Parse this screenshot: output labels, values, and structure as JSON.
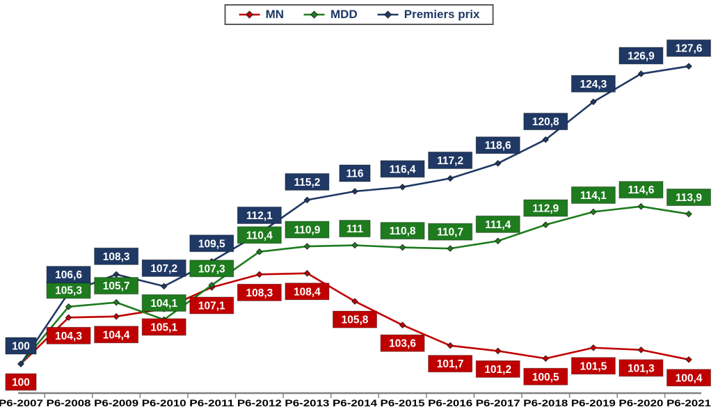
{
  "chart_data": {
    "type": "line",
    "title": "",
    "xlabel": "",
    "ylabel": "",
    "categories": [
      "P6-2007",
      "P6-2008",
      "P6-2009",
      "P6-2010",
      "P6-2011",
      "P6-2012",
      "P6-2013",
      "P6-2014",
      "P6-2015",
      "P6-2016",
      "P6-2017",
      "P6-2018",
      "P6-2019",
      "P6-2020",
      "P6-2021"
    ],
    "series": [
      {
        "name": "MN",
        "color": "#C00000",
        "values": [
          100,
          104.3,
          104.4,
          105.1,
          107.1,
          108.3,
          108.4,
          105.8,
          103.6,
          101.7,
          101.2,
          100.5,
          101.5,
          101.3,
          100.4
        ],
        "labels": [
          "100",
          "104,3",
          "104,4",
          "105,1",
          "107,1",
          "108,3",
          "108,4",
          "105,8",
          "103,6",
          "101,7",
          "101,2",
          "100,5",
          "101,5",
          "101,3",
          "100,4"
        ],
        "label_offset": 26
      },
      {
        "name": "MDD",
        "color": "#1E7B1E",
        "values": [
          100,
          105.3,
          105.7,
          104.1,
          107.3,
          110.4,
          110.9,
          111,
          110.8,
          110.7,
          111.4,
          112.9,
          114.1,
          114.6,
          113.9
        ],
        "labels": [
          "",
          "105,3",
          "105,7",
          "104,1",
          "107,3",
          "110,4",
          "110,9",
          "111",
          "110,8",
          "110,7",
          "111,4",
          "112,9",
          "114,1",
          "114,6",
          "113,9"
        ],
        "label_offset": -24
      },
      {
        "name": "Premiers prix",
        "color": "#1F3864",
        "values": [
          100,
          106.6,
          108.3,
          107.2,
          109.5,
          112.1,
          115.2,
          116,
          116.4,
          117.2,
          118.6,
          120.8,
          124.3,
          126.9,
          127.6
        ],
        "labels": [
          "100",
          "106,6",
          "108,3",
          "107,2",
          "109,5",
          "112,1",
          "115,2",
          "116",
          "116,4",
          "117,2",
          "118,6",
          "120,8",
          "124,3",
          "126,9",
          "127,6"
        ],
        "label_offset": -26
      }
    ],
    "ylim": [
      100,
      128
    ],
    "grid": false,
    "legend_position": "top-center",
    "legend_text_color": "#1F3864",
    "label_text_color": "#FFFFFF",
    "axis_line_color": "#808080",
    "axis_label_color": "#000000",
    "decimal_separator": ","
  }
}
